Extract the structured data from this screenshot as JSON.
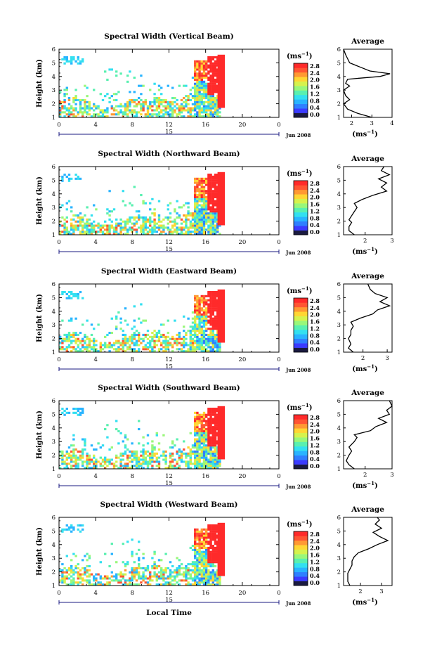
{
  "chart_data": {
    "type": "heatmap",
    "x_title": "Local Time",
    "panels": [
      {
        "title": "Spectral Width (Vertical Beam)",
        "cb_ticks": [
          "2.8",
          "2.4",
          "2.0",
          "1.6",
          "1.2",
          "0.8",
          "0.4",
          "0.0"
        ],
        "avg_ticks": [
          "2",
          "3",
          "4"
        ],
        "avg_range": [
          1.6,
          4.0
        ],
        "avg_profile": [
          [
            1.0,
            3.0
          ],
          [
            1.3,
            2.3
          ],
          [
            1.6,
            1.8
          ],
          [
            2.0,
            1.6
          ],
          [
            2.3,
            1.9
          ],
          [
            2.6,
            1.7
          ],
          [
            3.0,
            1.6
          ],
          [
            3.3,
            1.9
          ],
          [
            3.5,
            1.7
          ],
          [
            3.8,
            1.8
          ],
          [
            4.0,
            3.4
          ],
          [
            4.2,
            3.9
          ],
          [
            4.4,
            2.9
          ],
          [
            4.7,
            2.4
          ],
          [
            5.0,
            1.9
          ],
          [
            5.3,
            1.8
          ],
          [
            5.6,
            1.7
          ],
          [
            6.0,
            1.6
          ]
        ]
      },
      {
        "title": "Spectral Width (Northward Beam)",
        "cb_ticks": [
          "2.8",
          "2.4",
          "2.0",
          "1.6",
          "1.2",
          "0.8",
          "0.4",
          "0.0"
        ],
        "avg_ticks": [
          "2",
          "3"
        ],
        "avg_range": [
          1.2,
          3.0
        ],
        "avg_profile": [
          [
            1.0,
            1.6
          ],
          [
            1.3,
            1.4
          ],
          [
            1.6,
            1.4
          ],
          [
            1.9,
            1.5
          ],
          [
            2.1,
            1.4
          ],
          [
            2.4,
            1.5
          ],
          [
            2.7,
            1.6
          ],
          [
            3.0,
            1.7
          ],
          [
            3.3,
            1.6
          ],
          [
            3.6,
            1.9
          ],
          [
            3.9,
            2.3
          ],
          [
            4.2,
            2.8
          ],
          [
            4.5,
            2.6
          ],
          [
            4.8,
            2.8
          ],
          [
            5.1,
            2.5
          ],
          [
            5.4,
            2.9
          ],
          [
            5.7,
            2.6
          ],
          [
            6.0,
            2.7
          ]
        ]
      },
      {
        "title": "Spectral Width (Eastward Beam)",
        "cb_ticks": [
          "2.8",
          "2.4",
          "2.0",
          "1.6",
          "1.2",
          "0.8",
          "0.4",
          "0.0"
        ],
        "avg_ticks": [
          "2",
          "3"
        ],
        "avg_range": [
          1.2,
          3.2
        ],
        "avg_profile": [
          [
            1.0,
            1.6
          ],
          [
            1.3,
            1.4
          ],
          [
            1.6,
            1.5
          ],
          [
            2.0,
            1.4
          ],
          [
            2.3,
            1.5
          ],
          [
            2.6,
            1.5
          ],
          [
            2.9,
            1.6
          ],
          [
            3.2,
            1.5
          ],
          [
            3.5,
            1.9
          ],
          [
            3.8,
            2.4
          ],
          [
            4.1,
            2.6
          ],
          [
            4.4,
            3.1
          ],
          [
            4.7,
            2.7
          ],
          [
            5.0,
            3.0
          ],
          [
            5.3,
            2.5
          ],
          [
            5.6,
            2.3
          ],
          [
            6.0,
            2.2
          ]
        ]
      },
      {
        "title": "Spectral Width (Southward Beam)",
        "cb_ticks": [
          "2.8",
          "2.4",
          "2.0",
          "1.6",
          "1.2",
          "0.8",
          "0.4",
          "0.0"
        ],
        "avg_ticks": [
          "2",
          "3"
        ],
        "avg_range": [
          1.2,
          3.0
        ],
        "avg_profile": [
          [
            1.0,
            1.6
          ],
          [
            1.3,
            1.4
          ],
          [
            1.6,
            1.3
          ],
          [
            2.0,
            1.4
          ],
          [
            2.3,
            1.5
          ],
          [
            2.6,
            1.4
          ],
          [
            3.0,
            1.6
          ],
          [
            3.3,
            1.7
          ],
          [
            3.5,
            1.6
          ],
          [
            3.8,
            2.2
          ],
          [
            4.1,
            2.4
          ],
          [
            4.4,
            2.8
          ],
          [
            4.7,
            2.5
          ],
          [
            5.0,
            2.9
          ],
          [
            5.3,
            2.8
          ],
          [
            5.6,
            3.0
          ],
          [
            6.0,
            2.9
          ]
        ]
      },
      {
        "title": "Spectral Width (Westward Beam)",
        "cb_ticks": [
          "2.8",
          "2.4",
          "2.0",
          "1.6",
          "1.2",
          "0.8",
          "0.4",
          "0.0"
        ],
        "avg_ticks": [
          "2",
          "3"
        ],
        "avg_range": [
          1.2,
          3.5
        ],
        "avg_profile": [
          [
            1.0,
            1.5
          ],
          [
            1.3,
            1.4
          ],
          [
            1.6,
            1.4
          ],
          [
            1.9,
            1.4
          ],
          [
            2.2,
            1.5
          ],
          [
            2.5,
            1.6
          ],
          [
            2.8,
            1.6
          ],
          [
            3.1,
            1.7
          ],
          [
            3.4,
            1.9
          ],
          [
            3.7,
            2.4
          ],
          [
            4.0,
            2.8
          ],
          [
            4.3,
            3.3
          ],
          [
            4.6,
            2.9
          ],
          [
            4.9,
            2.6
          ],
          [
            5.2,
            3.0
          ],
          [
            5.5,
            2.7
          ],
          [
            5.8,
            2.9
          ],
          [
            6.0,
            2.8
          ]
        ]
      }
    ],
    "x_range": [
      0,
      24
    ],
    "x_ticks": [
      "0",
      "4",
      "8",
      "12",
      "16",
      "20",
      "0"
    ],
    "date_tick": "15",
    "date_label": "Jun 2008",
    "y_range": [
      1,
      6
    ],
    "y_ticks": [
      "1",
      "2",
      "3",
      "4",
      "5",
      "6"
    ],
    "y_label": "Height (km)",
    "cb_unit": "(ms",
    "cb_unit_exp": "−1",
    "avg_title": "Average",
    "avg_xlabel": "(ms",
    "avg_xlabel_exp": "−1",
    "colormap": [
      "#1a1a40",
      "#3b3bff",
      "#2f7fff",
      "#29b4ff",
      "#33e0f0",
      "#59f0b0",
      "#99f77a",
      "#d6f24d",
      "#ffd633",
      "#ff9933",
      "#ff5533",
      "#ff2a2a"
    ]
  }
}
